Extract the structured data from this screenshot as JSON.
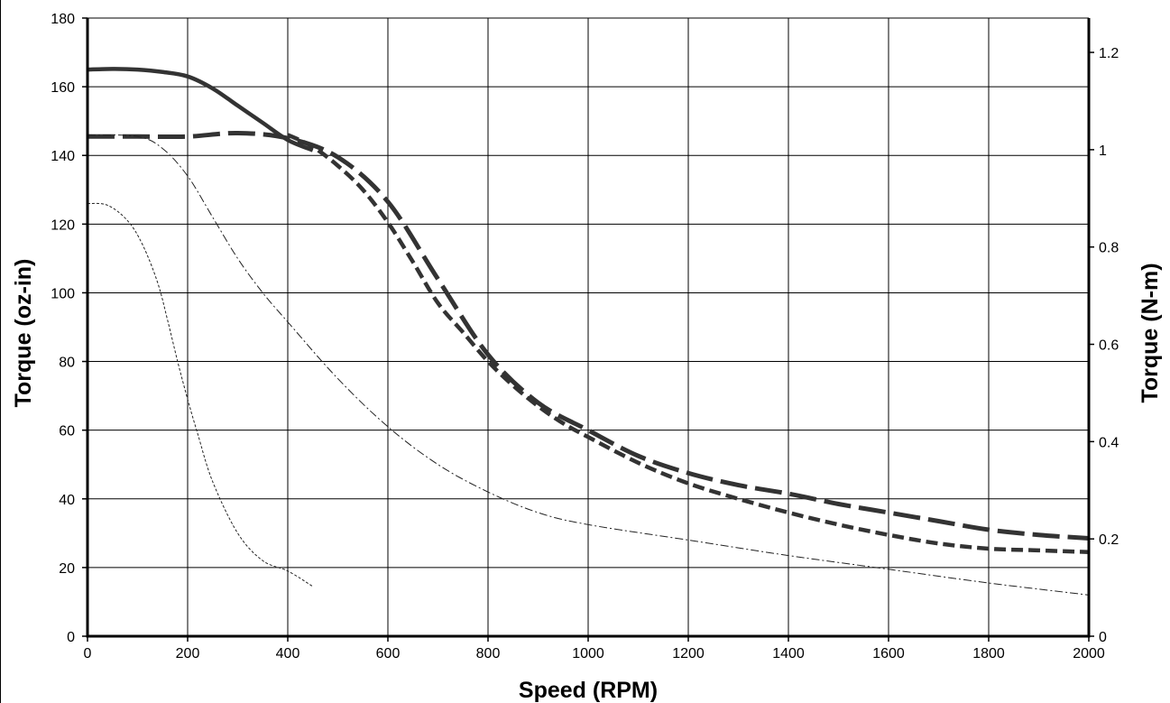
{
  "chart_data": {
    "type": "line",
    "title": "",
    "xlabel": "Speed (RPM)",
    "ylabel": "Torque (oz-in)",
    "y2label": "Torque (N-m)",
    "xlim": [
      0,
      2000
    ],
    "ylim": [
      0,
      180
    ],
    "y2lim": [
      0,
      1.2706
    ],
    "x_ticks": [
      0,
      200,
      400,
      600,
      800,
      1000,
      1200,
      1400,
      1600,
      1800,
      2000
    ],
    "y_ticks": [
      0,
      20,
      40,
      60,
      80,
      100,
      120,
      140,
      160,
      180
    ],
    "y2_ticks": [
      0,
      0.2,
      0.4,
      0.6,
      0.8,
      1,
      1.2
    ],
    "grid": true,
    "legend": "none",
    "series": [
      {
        "style": "solid-thick",
        "x": [
          0,
          50,
          100,
          150,
          200,
          250,
          300,
          350,
          400,
          450
        ],
        "y": [
          165,
          165.2,
          165,
          164.3,
          163,
          159.5,
          154.5,
          149.5,
          144.5,
          141.5
        ]
      },
      {
        "style": "long-dash-thick",
        "x": [
          0,
          100,
          200,
          300,
          400,
          500,
          600,
          700,
          800,
          900,
          1000,
          1100,
          1200,
          1300,
          1400,
          1500,
          1600,
          1700,
          1800,
          1900,
          2000
        ],
        "y": [
          145.5,
          145.5,
          145.5,
          146.5,
          145,
          139.5,
          126.5,
          104,
          82,
          68,
          60,
          52.5,
          47.5,
          44,
          41.5,
          38.5,
          36,
          33.5,
          31,
          29.5,
          28.5
        ]
      },
      {
        "style": "short-dash-thick",
        "x": [
          400,
          450,
          500,
          550,
          600,
          650,
          700,
          750,
          800,
          850,
          900,
          950,
          1000,
          1100,
          1200,
          1300,
          1400,
          1500,
          1600,
          1700,
          1800,
          1900,
          2000
        ],
        "y": [
          146,
          142.5,
          137,
          130,
          120.5,
          109,
          97,
          88.5,
          80,
          73,
          67,
          62,
          58,
          50.5,
          44.5,
          40,
          36,
          32.5,
          29.5,
          27,
          25.5,
          25,
          24.5
        ]
      },
      {
        "style": "dash-dot-thin",
        "x": [
          0,
          100,
          150,
          200,
          250,
          300,
          350,
          400,
          500,
          600,
          700,
          800,
          900,
          1000,
          1200,
          1400,
          1600,
          1800,
          2000
        ],
        "y": [
          146,
          145.5,
          142,
          134,
          122,
          110,
          100,
          91.5,
          75,
          61,
          50,
          42,
          36,
          32.5,
          28,
          23.5,
          19.5,
          15.5,
          12
        ]
      },
      {
        "style": "dotted-thin",
        "x": [
          0,
          40,
          80,
          110,
          140,
          160,
          180,
          200,
          220,
          250,
          300,
          350,
          400,
          450
        ],
        "y": [
          126,
          125.5,
          121,
          114,
          103,
          92,
          80,
          69,
          59,
          45,
          30,
          22,
          19,
          14.5
        ]
      }
    ]
  }
}
